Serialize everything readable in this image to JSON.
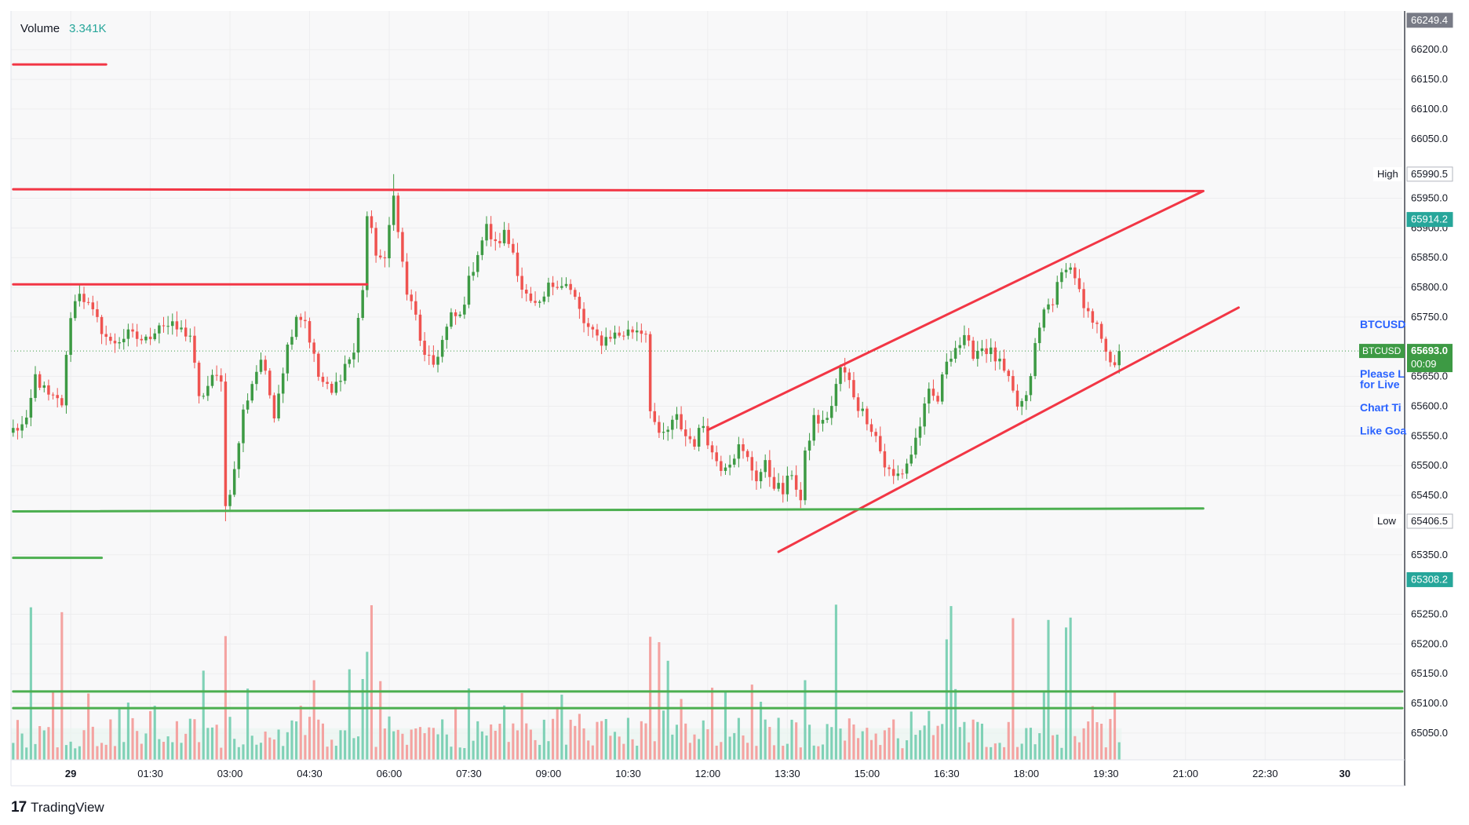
{
  "legend": {
    "label": "Volume",
    "value": "3.341K",
    "value_color": "#26a69a"
  },
  "brand": {
    "name": "TradingView",
    "mark": "17"
  },
  "price_axis": {
    "ticks": [
      "66200.0",
      "66150.0",
      "66100.0",
      "66050.0",
      "65950.0",
      "65900.0",
      "65850.0",
      "65800.0",
      "65750.0",
      "65650.0",
      "65600.0",
      "65550.0",
      "65500.0",
      "65450.0",
      "65350.0",
      "65250.0",
      "65200.0",
      "65150.0",
      "65100.0",
      "65050.0"
    ],
    "tick_values": [
      66200,
      66150,
      66100,
      66050,
      65950,
      65900,
      65850,
      65800,
      65750,
      65650,
      65600,
      65550,
      65500,
      65450,
      65350,
      65250,
      65200,
      65150,
      65100,
      65050
    ],
    "labels": [
      {
        "text": "66249.4",
        "value": 66249.4,
        "bg": "#787b86",
        "fg": "#ffffff"
      },
      {
        "text": "65990.5",
        "value": 65990.5,
        "bg": "#ffffff",
        "fg": "#131722",
        "tag": "High"
      },
      {
        "text": "65914.2",
        "value": 65914.2,
        "bg": "#26a69a",
        "fg": "#ffffff"
      },
      {
        "text": "65406.5",
        "value": 65406.5,
        "bg": "#ffffff",
        "fg": "#131722",
        "tag": "Low"
      },
      {
        "text": "65308.2",
        "value": 65308.2,
        "bg": "#26a69a",
        "fg": "#ffffff"
      }
    ],
    "last": {
      "symbol": "BTCUSD",
      "price": "65693.0",
      "countdown": "00:09",
      "value": 65693.0,
      "bg": "#3d9a44"
    }
  },
  "right_notes": [
    {
      "text": "BTCUSD",
      "value": 65738
    },
    {
      "text": "Please L",
      "value": 65655
    },
    {
      "text": "for Live",
      "value": 65637
    },
    {
      "text": "Chart Ti",
      "value": 65598
    },
    {
      "text": "Like Goa",
      "value": 65559
    }
  ],
  "colors": {
    "up": "#26a69a",
    "down": "#ef5350",
    "up_candle": "#3d9a44",
    "drawing_red": "#f23645",
    "drawing_green": "#4caf50"
  },
  "chart_data": {
    "type": "candlestick",
    "symbol": "BTCUSD",
    "x_axis": {
      "ticks": [
        {
          "label": "29",
          "index": 13,
          "bold": true
        },
        {
          "label": "01:30",
          "index": 31
        },
        {
          "label": "03:00",
          "index": 49
        },
        {
          "label": "04:30",
          "index": 67
        },
        {
          "label": "06:00",
          "index": 85
        },
        {
          "label": "07:30",
          "index": 103
        },
        {
          "label": "09:00",
          "index": 121
        },
        {
          "label": "10:30",
          "index": 139
        },
        {
          "label": "12:00",
          "index": 157
        },
        {
          "label": "13:30",
          "index": 175
        },
        {
          "label": "15:00",
          "index": 193
        },
        {
          "label": "16:30",
          "index": 211
        },
        {
          "label": "18:00",
          "index": 229
        },
        {
          "label": "19:30",
          "index": 247
        },
        {
          "label": "21:00",
          "index": 265
        },
        {
          "label": "22:30",
          "index": 283
        },
        {
          "label": "30",
          "index": 301,
          "bold": true
        }
      ],
      "range": [
        -0.5,
        314
      ]
    },
    "y_axis": {
      "range": [
        65005,
        66265
      ]
    },
    "high": 65990.5,
    "low": 65406.5,
    "last_price": 65693.0,
    "anchors": [
      {
        "i": 0,
        "p": 65560
      },
      {
        "i": 3,
        "p": 65570
      },
      {
        "i": 5,
        "p": 65650
      },
      {
        "i": 8,
        "p": 65615
      },
      {
        "i": 11,
        "p": 65605
      },
      {
        "i": 13,
        "p": 65755
      },
      {
        "i": 15,
        "p": 65795
      },
      {
        "i": 18,
        "p": 65755
      },
      {
        "i": 22,
        "p": 65705
      },
      {
        "i": 26,
        "p": 65720
      },
      {
        "i": 30,
        "p": 65710
      },
      {
        "i": 33,
        "p": 65740
      },
      {
        "i": 37,
        "p": 65730
      },
      {
        "i": 40,
        "p": 65720
      },
      {
        "i": 42,
        "p": 65610
      },
      {
        "i": 45,
        "p": 65645
      },
      {
        "i": 47,
        "p": 65650
      },
      {
        "i": 48,
        "p": 65430
      },
      {
        "i": 50,
        "p": 65490
      },
      {
        "i": 52,
        "p": 65590
      },
      {
        "i": 54,
        "p": 65640
      },
      {
        "i": 56,
        "p": 65680
      },
      {
        "i": 59,
        "p": 65590
      },
      {
        "i": 62,
        "p": 65700
      },
      {
        "i": 64,
        "p": 65755
      },
      {
        "i": 66,
        "p": 65745
      },
      {
        "i": 69,
        "p": 65650
      },
      {
        "i": 72,
        "p": 65620
      },
      {
        "i": 75,
        "p": 65670
      },
      {
        "i": 77,
        "p": 65690
      },
      {
        "i": 79,
        "p": 65800
      },
      {
        "i": 80,
        "p": 65920
      },
      {
        "i": 82,
        "p": 65860
      },
      {
        "i": 84,
        "p": 65840
      },
      {
        "i": 86,
        "p": 65965
      },
      {
        "i": 87,
        "p": 65890
      },
      {
        "i": 89,
        "p": 65790
      },
      {
        "i": 91,
        "p": 65750
      },
      {
        "i": 93,
        "p": 65680
      },
      {
        "i": 95,
        "p": 65670
      },
      {
        "i": 97,
        "p": 65710
      },
      {
        "i": 99,
        "p": 65750
      },
      {
        "i": 101,
        "p": 65750
      },
      {
        "i": 103,
        "p": 65810
      },
      {
        "i": 105,
        "p": 65860
      },
      {
        "i": 107,
        "p": 65900
      },
      {
        "i": 109,
        "p": 65870
      },
      {
        "i": 111,
        "p": 65890
      },
      {
        "i": 113,
        "p": 65860
      },
      {
        "i": 115,
        "p": 65800
      },
      {
        "i": 117,
        "p": 65770
      },
      {
        "i": 119,
        "p": 65765
      },
      {
        "i": 121,
        "p": 65800
      },
      {
        "i": 123,
        "p": 65810
      },
      {
        "i": 125,
        "p": 65805
      },
      {
        "i": 127,
        "p": 65780
      },
      {
        "i": 129,
        "p": 65740
      },
      {
        "i": 131,
        "p": 65720
      },
      {
        "i": 133,
        "p": 65710
      },
      {
        "i": 135,
        "p": 65720
      },
      {
        "i": 137,
        "p": 65720
      },
      {
        "i": 139,
        "p": 65725
      },
      {
        "i": 141,
        "p": 65730
      },
      {
        "i": 143,
        "p": 65725
      },
      {
        "i": 144,
        "p": 65600
      },
      {
        "i": 146,
        "p": 65545
      },
      {
        "i": 148,
        "p": 65560
      },
      {
        "i": 150,
        "p": 65580
      },
      {
        "i": 152,
        "p": 65550
      },
      {
        "i": 154,
        "p": 65540
      },
      {
        "i": 156,
        "p": 65570
      },
      {
        "i": 158,
        "p": 65520
      },
      {
        "i": 160,
        "p": 65500
      },
      {
        "i": 162,
        "p": 65510
      },
      {
        "i": 164,
        "p": 65530
      },
      {
        "i": 166,
        "p": 65510
      },
      {
        "i": 168,
        "p": 65480
      },
      {
        "i": 170,
        "p": 65500
      },
      {
        "i": 172,
        "p": 65470
      },
      {
        "i": 174,
        "p": 65455
      },
      {
        "i": 176,
        "p": 65490
      },
      {
        "i": 178,
        "p": 65440
      },
      {
        "i": 179,
        "p": 65515
      },
      {
        "i": 181,
        "p": 65580
      },
      {
        "i": 183,
        "p": 65570
      },
      {
        "i": 185,
        "p": 65600
      },
      {
        "i": 187,
        "p": 65665
      },
      {
        "i": 189,
        "p": 65640
      },
      {
        "i": 191,
        "p": 65600
      },
      {
        "i": 193,
        "p": 65580
      },
      {
        "i": 195,
        "p": 65550
      },
      {
        "i": 197,
        "p": 65500
      },
      {
        "i": 199,
        "p": 65480
      },
      {
        "i": 201,
        "p": 65490
      },
      {
        "i": 203,
        "p": 65520
      },
      {
        "i": 205,
        "p": 65570
      },
      {
        "i": 207,
        "p": 65620
      },
      {
        "i": 209,
        "p": 65610
      },
      {
        "i": 211,
        "p": 65680
      },
      {
        "i": 213,
        "p": 65700
      },
      {
        "i": 215,
        "p": 65710
      },
      {
        "i": 217,
        "p": 65690
      },
      {
        "i": 219,
        "p": 65700
      },
      {
        "i": 221,
        "p": 65690
      },
      {
        "i": 223,
        "p": 65670
      },
      {
        "i": 225,
        "p": 65640
      },
      {
        "i": 227,
        "p": 65600
      },
      {
        "i": 229,
        "p": 65610
      },
      {
        "i": 231,
        "p": 65700
      },
      {
        "i": 233,
        "p": 65760
      },
      {
        "i": 235,
        "p": 65780
      },
      {
        "i": 237,
        "p": 65820
      },
      {
        "i": 238,
        "p": 65840
      },
      {
        "i": 240,
        "p": 65820
      },
      {
        "i": 242,
        "p": 65760
      },
      {
        "i": 244,
        "p": 65740
      },
      {
        "i": 246,
        "p": 65720
      },
      {
        "i": 248,
        "p": 65680
      },
      {
        "i": 249,
        "p": 65660
      },
      {
        "i": 250,
        "p": 65693
      }
    ],
    "volume_scale": {
      "max": 2.7
    },
    "drawings": [
      {
        "kind": "segment",
        "color": "red",
        "from": {
          "i": 0,
          "p": 66175
        },
        "to": {
          "i": 21,
          "p": 66175
        }
      },
      {
        "kind": "segment",
        "color": "red",
        "from": {
          "i": 0,
          "p": 65965
        },
        "to": {
          "i": 269,
          "p": 65962
        }
      },
      {
        "kind": "segment",
        "color": "red",
        "from": {
          "i": 0,
          "p": 65805
        },
        "to": {
          "i": 80,
          "p": 65805
        }
      },
      {
        "kind": "segment",
        "color": "red",
        "from": {
          "i": 157,
          "p": 65560
        },
        "to": {
          "i": 269,
          "p": 65962
        }
      },
      {
        "kind": "segment",
        "color": "red",
        "from": {
          "i": 173,
          "p": 65355
        },
        "to": {
          "i": 277,
          "p": 65766
        }
      },
      {
        "kind": "segment",
        "color": "green",
        "from": {
          "i": 0,
          "p": 65423
        },
        "to": {
          "i": 269,
          "p": 65428
        }
      },
      {
        "kind": "segment",
        "color": "green",
        "from": {
          "i": 0,
          "p": 65345
        },
        "to": {
          "i": 20,
          "p": 65345
        }
      },
      {
        "kind": "segment",
        "color": "green",
        "from": {
          "i": 0,
          "p": 65120
        },
        "to": {
          "i": 314,
          "p": 65120
        }
      },
      {
        "kind": "segment",
        "color": "green",
        "from": {
          "i": 0,
          "p": 65092
        },
        "to": {
          "i": 314,
          "p": 65092
        }
      }
    ]
  }
}
